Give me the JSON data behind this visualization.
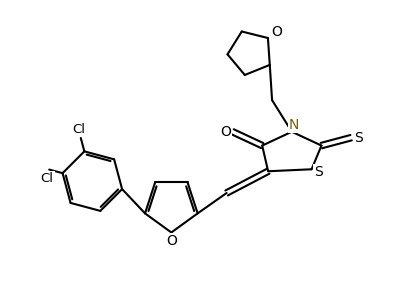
{
  "background_color": "#ffffff",
  "line_color": "#000000",
  "line_width": 1.5,
  "figsize": [
    3.98,
    3.03
  ],
  "dpi": 100,
  "xlim": [
    0,
    10
  ],
  "ylim": [
    0,
    7.6
  ]
}
